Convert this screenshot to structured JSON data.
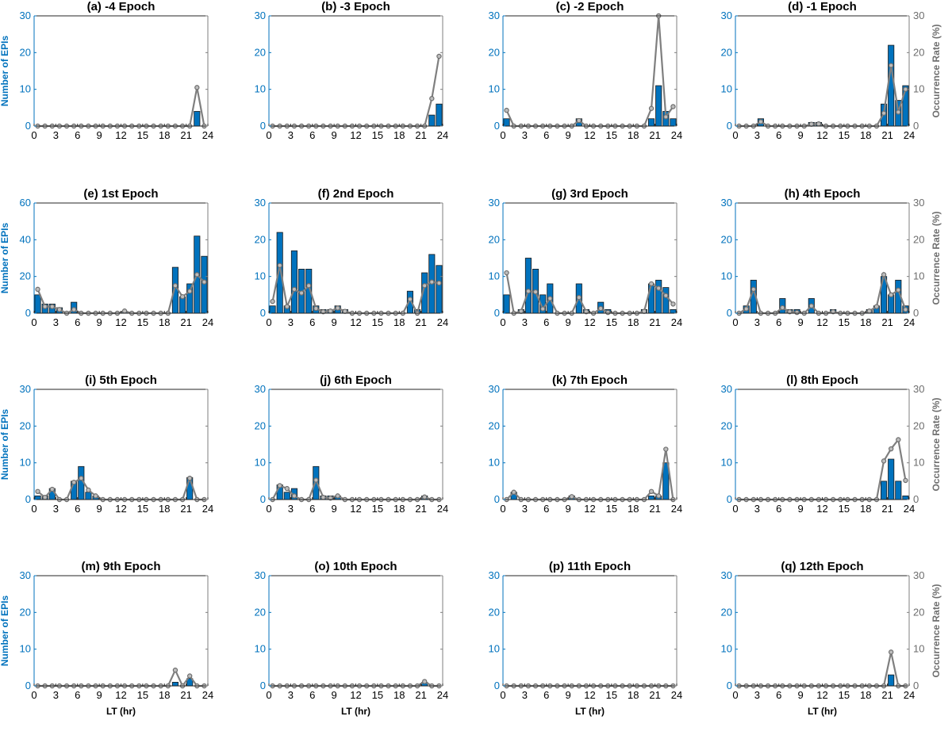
{
  "chart_data": {
    "type": "bar",
    "x_axis": {
      "label": "LT (hr)",
      "ticks": [
        "0",
        "3",
        "6",
        "9",
        "12",
        "15",
        "18",
        "21",
        "24"
      ],
      "range": [
        0,
        24
      ]
    },
    "left_axis_label": "Number of EPIs",
    "right_axis_label": "Occurrence Rate (%)",
    "colors": {
      "bars": "#0072BD",
      "line": "#7f7f7f",
      "left_axis": "#0072BD",
      "right_axis": "#7f7f7f"
    },
    "panels": [
      {
        "title": "(a) -4 Epoch",
        "ylim": [
          0,
          30
        ],
        "yticks": [
          "0",
          "10",
          "20",
          "30"
        ],
        "y2lim": [
          0,
          30
        ],
        "bars": [
          0,
          0,
          0,
          0,
          0,
          0,
          0,
          0,
          0,
          0,
          0,
          0,
          0,
          0,
          0,
          0,
          0,
          0,
          0,
          0,
          0,
          0,
          4,
          0
        ],
        "rate": [
          0,
          0,
          0,
          0,
          0,
          0,
          0,
          0,
          0,
          0,
          0,
          0,
          0,
          0,
          0,
          0,
          0,
          0,
          0,
          0,
          0,
          0,
          10.5,
          0
        ]
      },
      {
        "title": "(b) -3 Epoch",
        "ylim": [
          0,
          30
        ],
        "yticks": [
          "0",
          "10",
          "20",
          "30"
        ],
        "y2lim": [
          0,
          30
        ],
        "bars": [
          0,
          0,
          0,
          0,
          0,
          0,
          0,
          0,
          0,
          0,
          0,
          0,
          0,
          0,
          0,
          0,
          0,
          0,
          0,
          0,
          0,
          0,
          3,
          6
        ],
        "rate": [
          0,
          0,
          0,
          0,
          0,
          0,
          0,
          0,
          0,
          0,
          0,
          0,
          0,
          0,
          0,
          0,
          0,
          0,
          0,
          0,
          0,
          0,
          7.5,
          19
        ]
      },
      {
        "title": "(c) -2 Epoch",
        "ylim": [
          0,
          30
        ],
        "yticks": [
          "0",
          "10",
          "20",
          "30"
        ],
        "y2lim": [
          0,
          30
        ],
        "bars": [
          2,
          0,
          0,
          0,
          0,
          0,
          0,
          0,
          0,
          0,
          2,
          0,
          0,
          0,
          0,
          0,
          0,
          0,
          0,
          0,
          2,
          11,
          4,
          2
        ],
        "rate": [
          4.3,
          0,
          0,
          0,
          0,
          0,
          0,
          0,
          0,
          0,
          1.5,
          0,
          0,
          0,
          0,
          0,
          0,
          0,
          0,
          0,
          4.8,
          30,
          2.5,
          5.3
        ]
      },
      {
        "title": "(d) -1 Epoch",
        "ylim": [
          0,
          30
        ],
        "yticks": [
          "0",
          "10",
          "20",
          "30"
        ],
        "y2lim": [
          0,
          30
        ],
        "yticks_right": [
          "0",
          "10",
          "20",
          "30"
        ],
        "bars": [
          0,
          0,
          0,
          2,
          0,
          0,
          0,
          0,
          0,
          0,
          1,
          1,
          0,
          0,
          0,
          0,
          0,
          0,
          0,
          0,
          6,
          22,
          7,
          11
        ],
        "rate": [
          0,
          0,
          0,
          1.2,
          0,
          0,
          0,
          0,
          0,
          0,
          0.5,
          0.6,
          0,
          0,
          0,
          0,
          0,
          0,
          0,
          0,
          3.5,
          16.5,
          3.8,
          10
        ]
      },
      {
        "title": "(e) 1st Epoch",
        "ylim": [
          0,
          60
        ],
        "yticks": [
          "0",
          "20",
          "40",
          "60"
        ],
        "y2lim": [
          0,
          30
        ],
        "bars": [
          10,
          5,
          5,
          3,
          0,
          6,
          0,
          0,
          0,
          0,
          0,
          0,
          1,
          0,
          0,
          0,
          0,
          0,
          0,
          25,
          9,
          16,
          42,
          31
        ],
        "rate": [
          6.5,
          1.8,
          1.8,
          1,
          0,
          1,
          0,
          0,
          0,
          0,
          0,
          0,
          0.6,
          0,
          0,
          0,
          0,
          0,
          0,
          7.5,
          4.5,
          6,
          10.5,
          8.5
        ]
      },
      {
        "title": "(f) 2nd Epoch",
        "ylim": [
          0,
          30
        ],
        "yticks": [
          "0",
          "10",
          "20",
          "30"
        ],
        "y2lim": [
          0,
          30
        ],
        "bars": [
          2,
          22,
          2,
          17,
          12,
          12,
          2,
          1,
          1,
          2,
          1,
          0,
          0,
          0,
          0,
          0,
          0,
          0,
          0,
          6,
          1,
          11,
          16,
          13
        ],
        "rate": [
          3.2,
          13,
          1.8,
          6.5,
          5.5,
          7.5,
          1.3,
          0.4,
          0.6,
          1.4,
          0.5,
          0,
          0,
          0,
          0,
          0,
          0,
          0,
          0,
          3.8,
          0,
          7.5,
          8.5,
          8.2
        ]
      },
      {
        "title": "(g) 3rd Epoch",
        "ylim": [
          0,
          30
        ],
        "yticks": [
          "0",
          "10",
          "20",
          "30"
        ],
        "y2lim": [
          0,
          30
        ],
        "bars": [
          5,
          0,
          1,
          15,
          12,
          5,
          8,
          0,
          0,
          0,
          8,
          1,
          0,
          3,
          1,
          0,
          0,
          0,
          0,
          1,
          8,
          9,
          7,
          1
        ],
        "rate": [
          11,
          0,
          0.5,
          6,
          5.8,
          1.2,
          4,
          0,
          0,
          0,
          4.3,
          0.4,
          0,
          1.3,
          0.2,
          0,
          0,
          0,
          0,
          0.5,
          8,
          6.8,
          4.8,
          2.5
        ]
      },
      {
        "title": "(h) 4th Epoch",
        "ylim": [
          0,
          30
        ],
        "yticks": [
          "0",
          "10",
          "20",
          "30"
        ],
        "y2lim": [
          0,
          30
        ],
        "yticks_right": [
          "0",
          "10",
          "20",
          "30"
        ],
        "bars": [
          0,
          2,
          9,
          0,
          0,
          0,
          4,
          1,
          1,
          0,
          4,
          0,
          0,
          1,
          0,
          0,
          0,
          0,
          1,
          2,
          10,
          5,
          9,
          2
        ],
        "rate": [
          0,
          1.2,
          6.5,
          0,
          0,
          0,
          1.5,
          0.4,
          0.2,
          0,
          2,
          0,
          0,
          0.4,
          0,
          0,
          0,
          0,
          0.6,
          1.8,
          10.5,
          5,
          6.3,
          1
        ]
      },
      {
        "title": "(i) 5th Epoch",
        "ylim": [
          0,
          30
        ],
        "yticks": [
          "0",
          "10",
          "20",
          "30"
        ],
        "y2lim": [
          0,
          30
        ],
        "bars": [
          1,
          1,
          3,
          0,
          0,
          5,
          9,
          2,
          1,
          0,
          0,
          0,
          0,
          0,
          0,
          0,
          0,
          0,
          0,
          0,
          0,
          6,
          0,
          0
        ],
        "rate": [
          2.2,
          0.6,
          2.8,
          0,
          0,
          4.7,
          5.8,
          2.6,
          1,
          0,
          0,
          0,
          0,
          0,
          0,
          0,
          0,
          0,
          0,
          0,
          0,
          5.8,
          0,
          0
        ]
      },
      {
        "title": "(j) 6th Epoch",
        "ylim": [
          0,
          30
        ],
        "yticks": [
          "0",
          "10",
          "20",
          "30"
        ],
        "y2lim": [
          0,
          30
        ],
        "bars": [
          0,
          4,
          2,
          3,
          0,
          0,
          9,
          1,
          1,
          1,
          0,
          0,
          0,
          0,
          0,
          0,
          0,
          0,
          0,
          0,
          0,
          1,
          0,
          0
        ],
        "rate": [
          0,
          3.8,
          3,
          1,
          0,
          0,
          5.3,
          0.6,
          0.4,
          1,
          0,
          0,
          0,
          0,
          0,
          0,
          0,
          0,
          0,
          0,
          0,
          0.7,
          0,
          0
        ]
      },
      {
        "title": "(k) 7th Epoch",
        "ylim": [
          0,
          30
        ],
        "yticks": [
          "0",
          "10",
          "20",
          "30"
        ],
        "y2lim": [
          0,
          30
        ],
        "bars": [
          0,
          2,
          0,
          0,
          0,
          0,
          0,
          0,
          0,
          1,
          0,
          0,
          0,
          0,
          0,
          0,
          0,
          0,
          0,
          0,
          1,
          1,
          10,
          0
        ],
        "rate": [
          0,
          2,
          0,
          0,
          0,
          0,
          0,
          0,
          0,
          0.8,
          0,
          0,
          0,
          0,
          0,
          0,
          0,
          0,
          0,
          0,
          2.2,
          1,
          13.7,
          0
        ]
      },
      {
        "title": "(l) 8th Epoch",
        "ylim": [
          0,
          30
        ],
        "yticks": [
          "0",
          "10",
          "20",
          "30"
        ],
        "y2lim": [
          0,
          30
        ],
        "yticks_right": [
          "0",
          "10",
          "20",
          "30"
        ],
        "bars": [
          0,
          0,
          0,
          0,
          0,
          0,
          0,
          0,
          0,
          0,
          0,
          0,
          0,
          0,
          0,
          0,
          0,
          0,
          0,
          0,
          5,
          11,
          5,
          1
        ],
        "rate": [
          0,
          0,
          0,
          0,
          0,
          0,
          0,
          0,
          0,
          0,
          0,
          0,
          0,
          0,
          0,
          0,
          0,
          0,
          0,
          0,
          10.5,
          13.8,
          16.3,
          5.2
        ]
      },
      {
        "title": "(m) 9th Epoch",
        "ylim": [
          0,
          30
        ],
        "yticks": [
          "0",
          "10",
          "20",
          "30"
        ],
        "y2lim": [
          0,
          30
        ],
        "bars": [
          0,
          0,
          0,
          0,
          0,
          0,
          0,
          0,
          0,
          0,
          0,
          0,
          0,
          0,
          0,
          0,
          0,
          0,
          0,
          1,
          0,
          2,
          0,
          0
        ],
        "rate": [
          0,
          0,
          0,
          0,
          0,
          0,
          0,
          0,
          0,
          0,
          0,
          0,
          0,
          0,
          0,
          0,
          0,
          0,
          0,
          4.3,
          0,
          2.7,
          0,
          0
        ]
      },
      {
        "title": "(o) 10th Epoch",
        "ylim": [
          0,
          30
        ],
        "yticks": [
          "0",
          "10",
          "20",
          "30"
        ],
        "y2lim": [
          0,
          30
        ],
        "bars": [
          0,
          0,
          0,
          0,
          0,
          0,
          0,
          0,
          0,
          0,
          0,
          0,
          0,
          0,
          0,
          0,
          0,
          0,
          0,
          0,
          0,
          1,
          0,
          0
        ],
        "rate": [
          0,
          0,
          0,
          0,
          0,
          0,
          0,
          0,
          0,
          0,
          0,
          0,
          0,
          0,
          0,
          0,
          0,
          0,
          0,
          0,
          0,
          1.2,
          0,
          0
        ]
      },
      {
        "title": "(p) 11th Epoch",
        "ylim": [
          0,
          30
        ],
        "yticks": [
          "0",
          "10",
          "20",
          "30"
        ],
        "y2lim": [
          0,
          30
        ],
        "bars": [
          0,
          0,
          0,
          0,
          0,
          0,
          0,
          0,
          0,
          0,
          0,
          0,
          0,
          0,
          0,
          0,
          0,
          0,
          0,
          0,
          0,
          0,
          0,
          0
        ],
        "rate": [
          0,
          0,
          0,
          0,
          0,
          0,
          0,
          0,
          0,
          0,
          0,
          0,
          0,
          0,
          0,
          0,
          0,
          0,
          0,
          0,
          0,
          0,
          0,
          0
        ]
      },
      {
        "title": "(q) 12th Epoch",
        "ylim": [
          0,
          30
        ],
        "yticks": [
          "0",
          "10",
          "20",
          "30"
        ],
        "y2lim": [
          0,
          30
        ],
        "yticks_right": [
          "0",
          "10",
          "20",
          "30"
        ],
        "bars": [
          0,
          0,
          0,
          0,
          0,
          0,
          0,
          0,
          0,
          0,
          0,
          0,
          0,
          0,
          0,
          0,
          0,
          0,
          0,
          0,
          0,
          3,
          0,
          0
        ],
        "rate": [
          0,
          0,
          0,
          0,
          0,
          0,
          0,
          0,
          0,
          0,
          0,
          0,
          0,
          0,
          0,
          0,
          0,
          0,
          0,
          0,
          0,
          9.2,
          0,
          0
        ]
      }
    ]
  }
}
